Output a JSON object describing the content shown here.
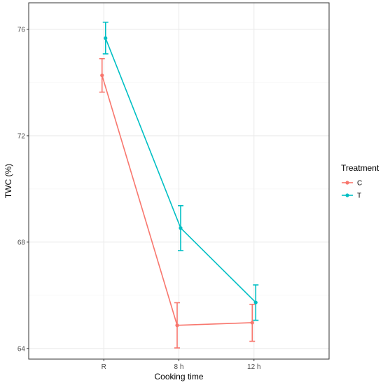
{
  "chart_data": {
    "type": "line",
    "title": "",
    "xlabel": "Cooking time",
    "ylabel": "TWC (%)",
    "categories": [
      "R",
      "8 h",
      "12 h"
    ],
    "ylim": [
      63.6,
      77.0
    ],
    "yticks": [
      64,
      68,
      72,
      76
    ],
    "yticks_labels": [
      "64",
      "68",
      "72",
      "76"
    ],
    "grid": true,
    "legend": {
      "title": "Treatment",
      "position": "right"
    },
    "series": [
      {
        "name": "C",
        "color": "#F8766D",
        "values": [
          74.27,
          64.87,
          64.97
        ],
        "err_low": [
          73.64,
          64.02,
          64.27
        ],
        "err_high": [
          74.9,
          65.72,
          65.66
        ]
      },
      {
        "name": "T",
        "color": "#00BFC4",
        "values": [
          75.67,
          68.53,
          65.73
        ],
        "err_low": [
          75.08,
          67.68,
          65.06
        ],
        "err_high": [
          76.27,
          69.37,
          66.39
        ]
      }
    ]
  }
}
